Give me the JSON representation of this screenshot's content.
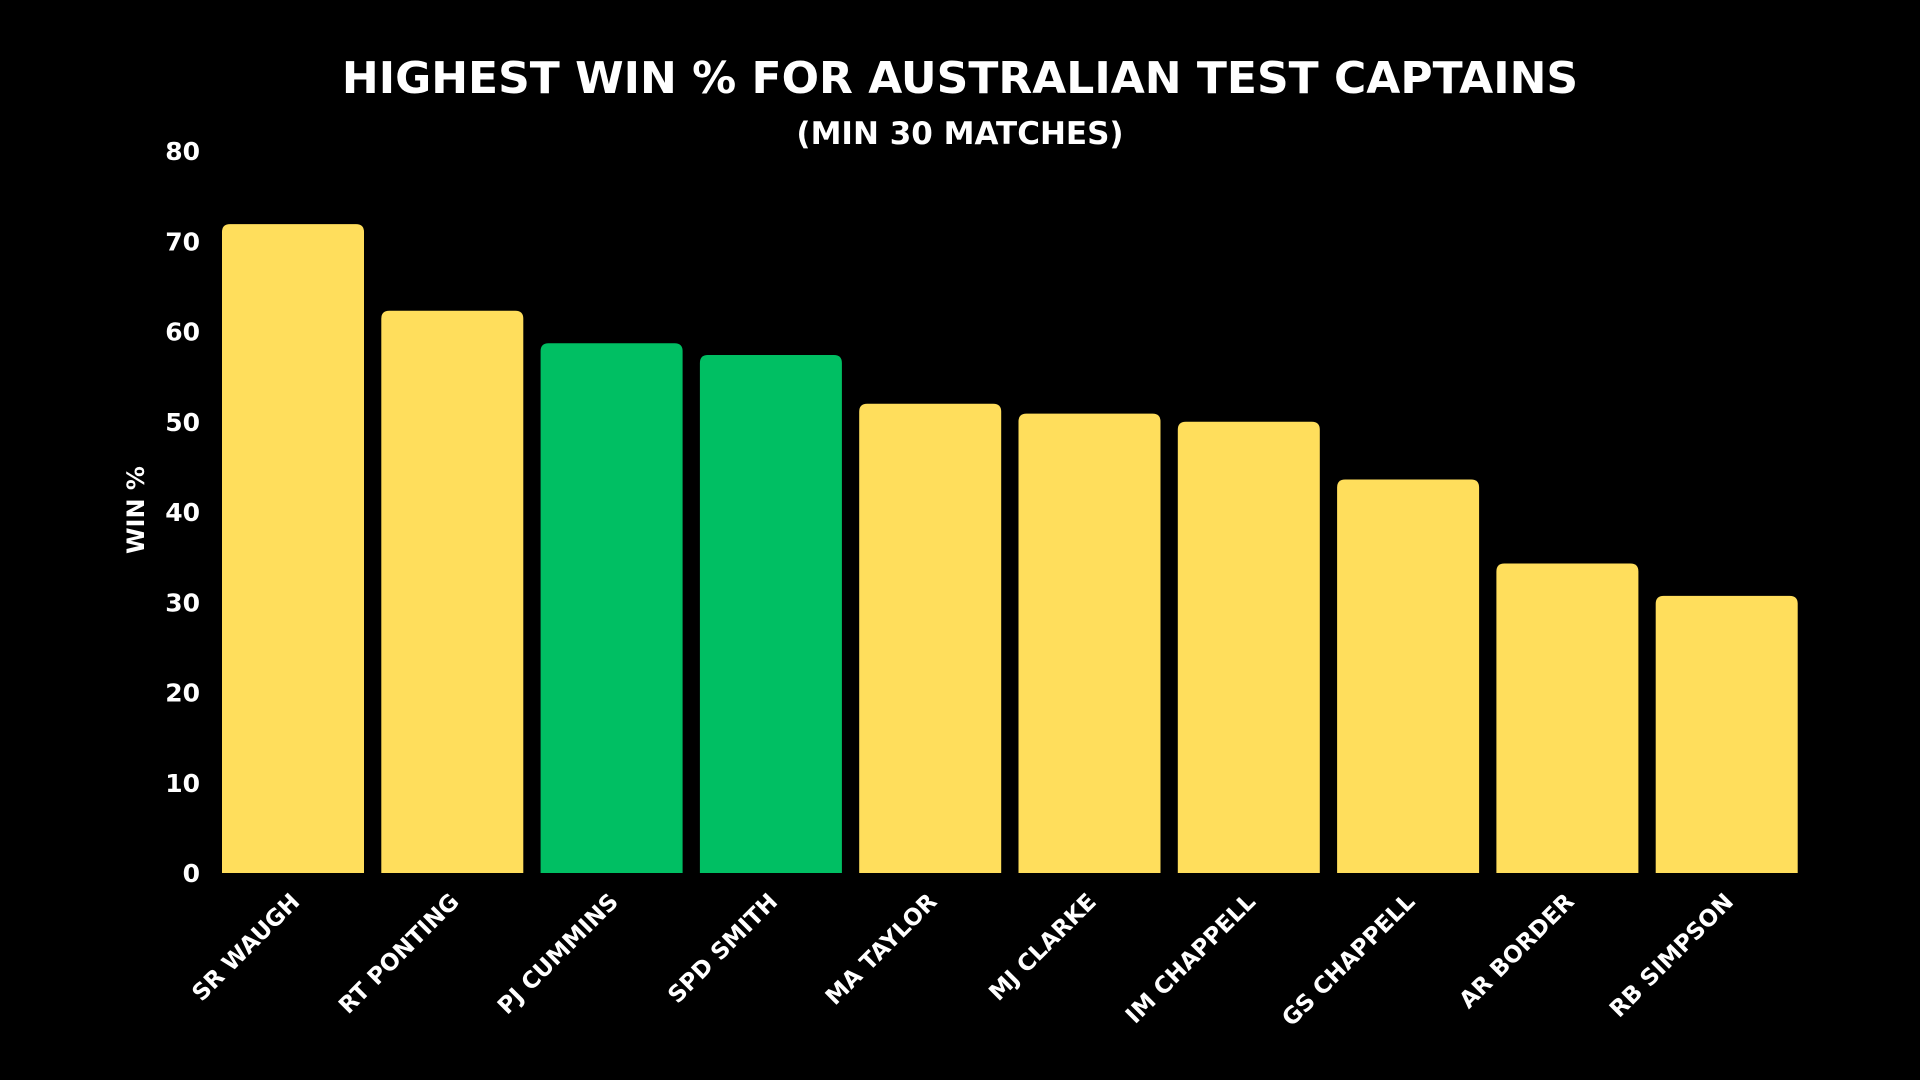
{
  "chart_data": {
    "type": "bar",
    "title": "HIGHEST WIN % FOR AUSTRALIAN TEST CAPTAINS",
    "subtitle": "(MIN 30 MATCHES)",
    "xlabel": "",
    "ylabel": "WIN %",
    "ylim": [
      0,
      80
    ],
    "yticks": [
      "0",
      "10",
      "20",
      "30",
      "40",
      "50",
      "60",
      "70",
      "80"
    ],
    "grid": false,
    "legend": "none",
    "categories": [
      "SR WAUGH",
      "RT PONTING",
      "PJ CUMMINS",
      "SPD SMITH",
      "MA TAYLOR",
      "MJ CLARKE",
      "IM CHAPPELL",
      "GS CHAPPELL",
      "AR BORDER",
      "RB SIMPSON"
    ],
    "values": [
      71.9,
      62.3,
      58.7,
      57.4,
      52.0,
      50.9,
      50.0,
      43.6,
      34.3,
      30.7
    ],
    "bar_colors": [
      "#FFDE5C",
      "#FFDE5C",
      "#00BF63",
      "#00BF63",
      "#FFDE5C",
      "#FFDE5C",
      "#FFDE5C",
      "#FFDE5C",
      "#FFDE5C",
      "#FFDE5C"
    ],
    "background_color": "#000000",
    "text_color": "#FFFFFF"
  }
}
